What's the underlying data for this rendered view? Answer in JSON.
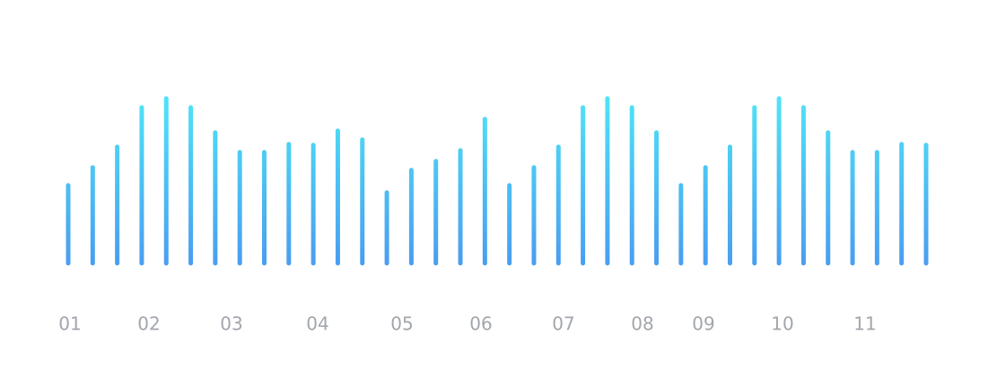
{
  "chart_data": {
    "type": "bar",
    "values": [
      87,
      107,
      130,
      174,
      184,
      174,
      146,
      124,
      124,
      133,
      132,
      148,
      138,
      79,
      104,
      114,
      126,
      161,
      87,
      107,
      130,
      174,
      184,
      174,
      146,
      87,
      107,
      130,
      174,
      184,
      174,
      146,
      124,
      124,
      133,
      132
    ],
    "x_labels": [
      "01",
      "02",
      "03",
      "04",
      "05",
      "06",
      "07",
      "08",
      "09",
      "10",
      "11"
    ],
    "gradient": [
      "#4fe3f7",
      "#4a9ef0"
    ],
    "ylim": [
      0,
      200
    ]
  }
}
